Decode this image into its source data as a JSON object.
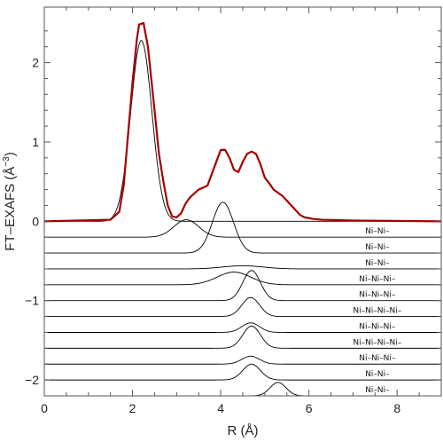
{
  "chart_data": {
    "type": "line",
    "xlabel": "R (Å)",
    "ylabel": "FT–EXAFS (Å",
    "ylabel_sup": "−3",
    "ylabel_close": ")",
    "xlim": [
      0,
      9
    ],
    "ylim": [
      -2.2,
      2.7
    ],
    "xticks": [
      "0",
      "2",
      "4",
      "6",
      "8"
    ],
    "yticks": [
      "−2",
      "−1",
      "0",
      "1",
      "2"
    ],
    "colors": {
      "total": "#a50000",
      "components": "#000000",
      "frame": "#555555"
    },
    "total_series": {
      "name": "total",
      "x": [
        0,
        1.5,
        1.7,
        1.8,
        1.9,
        2.0,
        2.1,
        2.15,
        2.25,
        2.35,
        2.5,
        2.6,
        2.7,
        2.8,
        2.9,
        3.0,
        3.1,
        3.2,
        3.3,
        3.5,
        3.7,
        3.9,
        4.0,
        4.1,
        4.2,
        4.3,
        4.4,
        4.5,
        4.6,
        4.7,
        4.8,
        4.9,
        5.0,
        5.1,
        5.2,
        5.4,
        5.6,
        5.8,
        5.9,
        6.0,
        6.1,
        6.3,
        7.0,
        9.0
      ],
      "y": [
        0.0,
        0.02,
        0.12,
        0.45,
        1.1,
        1.75,
        2.3,
        2.48,
        2.5,
        2.2,
        1.4,
        0.85,
        0.5,
        0.2,
        0.06,
        0.05,
        0.1,
        0.22,
        0.3,
        0.4,
        0.45,
        0.75,
        0.9,
        0.9,
        0.8,
        0.65,
        0.62,
        0.75,
        0.85,
        0.88,
        0.85,
        0.72,
        0.55,
        0.48,
        0.4,
        0.32,
        0.2,
        0.08,
        0.05,
        0.04,
        0.03,
        0.02,
        0.01,
        0.0
      ]
    },
    "components": [
      {
        "label": "",
        "offset": 0.0,
        "peaks": [
          [
            2.2,
            2.28,
            0.24
          ]
        ]
      },
      {
        "label": "Ni–Ni–",
        "offset": -0.2,
        "peaks": [
          [
            3.22,
            0.22,
            0.28
          ]
        ]
      },
      {
        "label": "Ni–Ni–",
        "offset": -0.4,
        "peaks": [
          [
            4.05,
            0.64,
            0.24
          ]
        ]
      },
      {
        "label": "Ni–Ni–",
        "offset": -0.6,
        "peaks": [
          [
            4.5,
            0.04,
            0.45
          ]
        ]
      },
      {
        "label": "Ni–Ni–Ni–",
        "offset": -0.8,
        "peaks": [
          [
            4.3,
            0.16,
            0.38
          ]
        ]
      },
      {
        "label": "Ni–Ni–Ni–",
        "offset": -1.0,
        "peaks": [
          [
            4.7,
            0.38,
            0.2
          ]
        ]
      },
      {
        "label": "Ni–Ni–Ni–Ni–",
        "offset": -1.2,
        "peaks": [
          [
            4.68,
            0.24,
            0.2
          ]
        ]
      },
      {
        "label": "Ni–Ni–Ni–",
        "offset": -1.4,
        "peaks": [
          [
            4.68,
            0.12,
            0.2
          ]
        ]
      },
      {
        "label": "Ni–Ni–Ni–Ni–",
        "offset": -1.6,
        "peaks": [
          [
            4.7,
            0.28,
            0.2
          ]
        ]
      },
      {
        "label": "Ni–Ni–Ni–",
        "offset": -1.8,
        "peaks": [
          [
            4.68,
            0.1,
            0.2
          ]
        ]
      },
      {
        "label": "Ni–Ni–",
        "offset": -2.0,
        "peaks": [
          [
            4.7,
            0.2,
            0.2
          ]
        ]
      },
      {
        "label": "Ni–Ni–",
        "offset": -2.2,
        "peaks": [
          [
            5.3,
            0.17,
            0.18
          ]
        ]
      }
    ]
  }
}
